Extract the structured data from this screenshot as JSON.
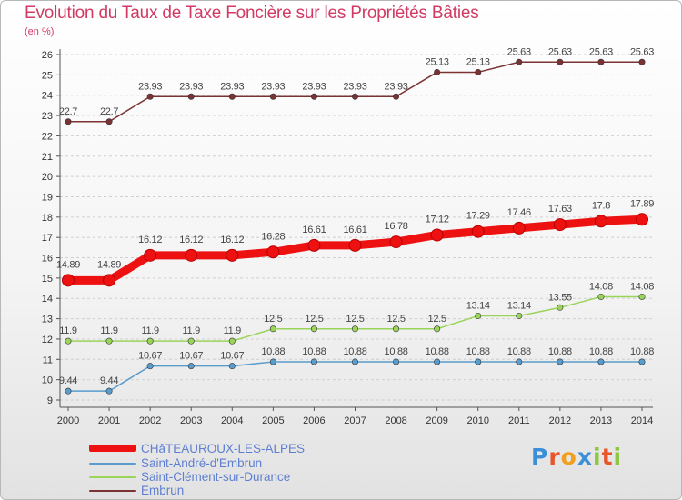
{
  "title": "Evolution du Taux de Taxe Foncière sur les Propriétés Bâties",
  "unit_label": "(en %)",
  "logo": {
    "letters": [
      "P",
      "r",
      "o",
      "x",
      "i",
      "t",
      "i"
    ],
    "colors": [
      "#3a8fd8",
      "#e8552a",
      "#f0a020",
      "#3a8fd8",
      "#8dc63f",
      "#e8552a",
      "#8dc63f"
    ]
  },
  "chart_data": {
    "type": "line",
    "title": "Evolution du Taux de Taxe Foncière sur les Propriétés Bâties",
    "ylabel": "(en %)",
    "xlabel": "",
    "ylim": [
      9,
      26
    ],
    "yticks": [
      "9",
      "10",
      "11",
      "12",
      "13",
      "14",
      "15",
      "16",
      "17",
      "18",
      "19",
      "20",
      "21",
      "22",
      "23",
      "24",
      "25",
      "26"
    ],
    "categories": [
      "2000",
      "2001",
      "2002",
      "2003",
      "2004",
      "2005",
      "2006",
      "2007",
      "2008",
      "2009",
      "2010",
      "2011",
      "2012",
      "2013",
      "2014"
    ],
    "series": [
      {
        "name": "Embrun",
        "color": "#7a3232",
        "values": [
          22.7,
          22.7,
          23.93,
          23.93,
          23.93,
          23.93,
          23.93,
          23.93,
          23.93,
          25.13,
          25.13,
          25.63,
          25.63,
          25.63,
          25.63
        ],
        "labels": [
          "22.7",
          "22.7",
          "23.93",
          "23.93",
          "23.93",
          "23.93",
          "23.93",
          "23.93",
          "23.93",
          "25.13",
          "25.13",
          "25.63",
          "25.63",
          "25.63",
          "25.63"
        ]
      },
      {
        "name": "CHâTEAUROUX-LES-ALPES",
        "color": "#ee1111",
        "values": [
          14.89,
          14.89,
          16.12,
          16.12,
          16.12,
          16.28,
          16.61,
          16.61,
          16.78,
          17.12,
          17.29,
          17.46,
          17.63,
          17.8,
          17.89
        ],
        "labels": [
          "14.89",
          "14.89",
          "16.12",
          "16.12",
          "16.12",
          "16.28",
          "16.61",
          "16.61",
          "16.78",
          "17.12",
          "17.29",
          "17.46",
          "17.63",
          "17.8",
          "17.89"
        ]
      },
      {
        "name": "Saint-Clément-sur-Durance",
        "color": "#9ad45a",
        "values": [
          11.9,
          11.9,
          11.9,
          11.9,
          11.9,
          12.5,
          12.5,
          12.5,
          12.5,
          12.5,
          13.14,
          13.14,
          13.55,
          14.08,
          14.08
        ],
        "labels": [
          "11.9",
          "11.9",
          "11.9",
          "11.9",
          "11.9",
          "12.5",
          "12.5",
          "12.5",
          "12.5",
          "12.5",
          "13.14",
          "13.14",
          "13.55",
          "14.08",
          "14.08"
        ]
      },
      {
        "name": "Saint-André-d'Embrun",
        "color": "#5a9ccc",
        "values": [
          9.44,
          9.44,
          10.67,
          10.67,
          10.67,
          10.88,
          10.88,
          10.88,
          10.88,
          10.88,
          10.88,
          10.88,
          10.88,
          10.88,
          10.88
        ],
        "labels": [
          "9.44",
          "9.44",
          "10.67",
          "10.67",
          "10.67",
          "10.88",
          "10.88",
          "10.88",
          "10.88",
          "10.88",
          "10.88",
          "10.88",
          "10.88",
          "10.88",
          "10.88"
        ]
      }
    ],
    "legend": [
      {
        "name": "CHâTEAUROUX-LES-ALPES",
        "color": "#ee1111"
      },
      {
        "name": "Saint-André-d'Embrun",
        "color": "#5a9ccc"
      },
      {
        "name": "Saint-Clément-sur-Durance",
        "color": "#9ad45a"
      },
      {
        "name": "Embrun",
        "color": "#7a3232"
      }
    ],
    "legend_position": "bottom-left",
    "grid": "horizontal-dashed"
  }
}
